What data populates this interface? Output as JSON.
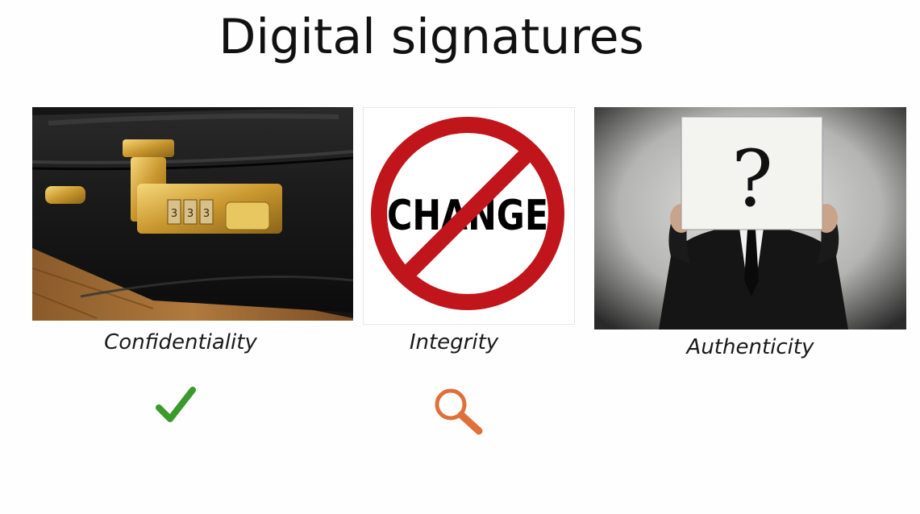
{
  "slide": {
    "title": "Digital signatures",
    "panels": [
      {
        "image": "locked-briefcase",
        "caption": "Confidentiality",
        "status_icon": "checkmark-icon",
        "status_color": "#3a9a2c"
      },
      {
        "image": "no-change-sign",
        "sign_text": "CHANGE",
        "caption": "Integrity",
        "status_icon": "magnifier-icon",
        "status_color": "#e0703a"
      },
      {
        "image": "faceless-man-question-mark",
        "sign_text": "?",
        "caption": "Authenticity"
      }
    ]
  }
}
